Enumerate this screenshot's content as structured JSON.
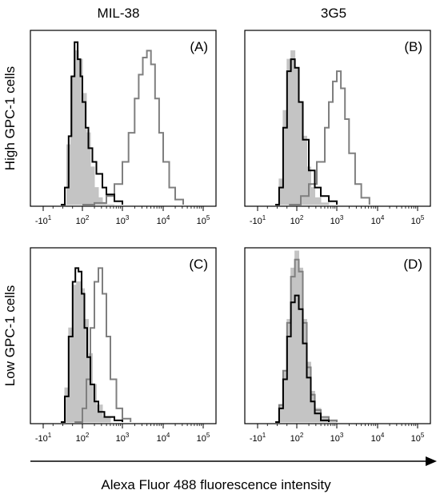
{
  "chart_data": {
    "type": "histogram-grid",
    "column_titles": [
      "MIL-38",
      "3G5"
    ],
    "row_titles": [
      "High GPC-1 cells",
      "Low GPC-1 cells"
    ],
    "xlabel": "Alexa Fluor 488 fluorescence intensity",
    "x_scale": "biexponential (log decades)",
    "x_ticks": [
      {
        "base": "-10",
        "exp": "1",
        "pos": -1
      },
      {
        "base": "10",
        "exp": "2",
        "pos": 0
      },
      {
        "base": "10",
        "exp": "3",
        "pos": 1
      },
      {
        "base": "10",
        "exp": "4",
        "pos": 2
      },
      {
        "base": "10",
        "exp": "5",
        "pos": 3
      }
    ],
    "series_style": {
      "filled": "#c4c4c4",
      "black": "#000000",
      "gray": "#7f7f7f"
    },
    "panels": [
      {
        "label": "(A)",
        "series": [
          {
            "style": "filled",
            "x": [
              -0.5,
              -0.4,
              -0.3,
              -0.2,
              -0.1,
              0.0,
              0.1,
              0.2,
              0.3,
              0.4,
              0.5,
              0.6,
              0.8
            ],
            "y": [
              0,
              0.35,
              0.75,
              0.9,
              0.85,
              0.65,
              0.42,
              0.22,
              0.1,
              0.04,
              0.01,
              0,
              0
            ]
          },
          {
            "style": "black",
            "x": [
              -0.55,
              -0.45,
              -0.35,
              -0.28,
              -0.2,
              -0.12,
              -0.05,
              0.0,
              0.08,
              0.15,
              0.25,
              0.35,
              0.5,
              0.6,
              0.8,
              1.0
            ],
            "y": [
              0,
              0.1,
              0.4,
              0.75,
              0.95,
              0.85,
              0.75,
              0.6,
              0.45,
              0.33,
              0.25,
              0.18,
              0.1,
              0.06,
              0.02,
              0
            ]
          },
          {
            "style": "gray",
            "x": [
              0.0,
              0.3,
              0.6,
              0.8,
              1.0,
              1.15,
              1.3,
              1.4,
              1.5,
              1.6,
              1.7,
              1.8,
              1.9,
              2.0,
              2.15,
              2.3,
              2.5
            ],
            "y": [
              0,
              0.01,
              0.05,
              0.12,
              0.25,
              0.42,
              0.62,
              0.76,
              0.86,
              0.9,
              0.82,
              0.62,
              0.42,
              0.25,
              0.1,
              0.03,
              0
            ]
          }
        ]
      },
      {
        "label": "(B)",
        "series": [
          {
            "style": "filled",
            "x": [
              -0.55,
              -0.45,
              -0.35,
              -0.25,
              -0.15,
              -0.05,
              0.05,
              0.15,
              0.25,
              0.35,
              0.45,
              0.6,
              0.8
            ],
            "y": [
              0,
              0.15,
              0.55,
              0.85,
              0.9,
              0.8,
              0.6,
              0.4,
              0.22,
              0.1,
              0.04,
              0.01,
              0
            ]
          },
          {
            "style": "black",
            "x": [
              -0.55,
              -0.45,
              -0.35,
              -0.25,
              -0.15,
              -0.05,
              0.05,
              0.15,
              0.3,
              0.45,
              0.6,
              0.8,
              1.0
            ],
            "y": [
              0,
              0.1,
              0.45,
              0.78,
              0.85,
              0.8,
              0.6,
              0.38,
              0.2,
              0.1,
              0.05,
              0.02,
              0
            ]
          },
          {
            "style": "gray",
            "x": [
              -0.2,
              0.1,
              0.3,
              0.5,
              0.7,
              0.8,
              0.9,
              1.0,
              1.1,
              1.2,
              1.3,
              1.45,
              1.6,
              1.8
            ],
            "y": [
              0,
              0.05,
              0.12,
              0.25,
              0.45,
              0.6,
              0.72,
              0.78,
              0.68,
              0.5,
              0.3,
              0.12,
              0.04,
              0
            ]
          }
        ]
      },
      {
        "label": "(C)",
        "series": [
          {
            "style": "filled",
            "x": [
              -0.55,
              -0.45,
              -0.35,
              -0.25,
              -0.15,
              -0.05,
              0.05,
              0.15,
              0.25,
              0.35,
              0.5,
              0.7
            ],
            "y": [
              0,
              0.2,
              0.55,
              0.8,
              0.82,
              0.78,
              0.6,
              0.4,
              0.22,
              0.1,
              0.03,
              0
            ]
          },
          {
            "style": "black",
            "x": [
              -0.55,
              -0.45,
              -0.35,
              -0.25,
              -0.18,
              -0.1,
              -0.02,
              0.05,
              0.12,
              0.2,
              0.3,
              0.4,
              0.55,
              0.8,
              1.0
            ],
            "y": [
              0,
              0.15,
              0.5,
              0.82,
              0.9,
              0.88,
              0.75,
              0.55,
              0.38,
              0.22,
              0.12,
              0.06,
              0.03,
              0.01,
              0
            ]
          },
          {
            "style": "gray",
            "x": [
              -0.2,
              0.0,
              0.1,
              0.2,
              0.3,
              0.4,
              0.5,
              0.6,
              0.7,
              0.85,
              1.0,
              1.2
            ],
            "y": [
              0,
              0.08,
              0.25,
              0.55,
              0.82,
              0.9,
              0.75,
              0.5,
              0.25,
              0.08,
              0.02,
              0
            ]
          }
        ]
      },
      {
        "label": "(D)",
        "series": [
          {
            "style": "filled",
            "x": [
              -0.55,
              -0.45,
              -0.35,
              -0.25,
              -0.15,
              -0.05,
              0.05,
              0.15,
              0.25,
              0.35,
              0.45,
              0.6,
              0.8,
              1.0
            ],
            "y": [
              0,
              0.1,
              0.3,
              0.6,
              0.9,
              1.0,
              0.9,
              0.6,
              0.35,
              0.18,
              0.08,
              0.03,
              0.01,
              0
            ]
          },
          {
            "style": "black",
            "x": [
              -0.55,
              -0.45,
              -0.35,
              -0.25,
              -0.15,
              -0.05,
              0.05,
              0.15,
              0.25,
              0.35,
              0.45,
              0.6,
              0.8
            ],
            "y": [
              0,
              0.08,
              0.25,
              0.5,
              0.7,
              0.74,
              0.66,
              0.46,
              0.26,
              0.12,
              0.05,
              0.01,
              0
            ]
          },
          {
            "style": "gray",
            "x": [
              -0.55,
              -0.45,
              -0.35,
              -0.25,
              -0.15,
              -0.05,
              0.05,
              0.15,
              0.25,
              0.35,
              0.45,
              0.6,
              0.8,
              1.0
            ],
            "y": [
              0,
              0.1,
              0.3,
              0.58,
              0.85,
              0.95,
              0.88,
              0.58,
              0.32,
              0.16,
              0.07,
              0.03,
              0.01,
              0
            ]
          }
        ]
      }
    ]
  }
}
